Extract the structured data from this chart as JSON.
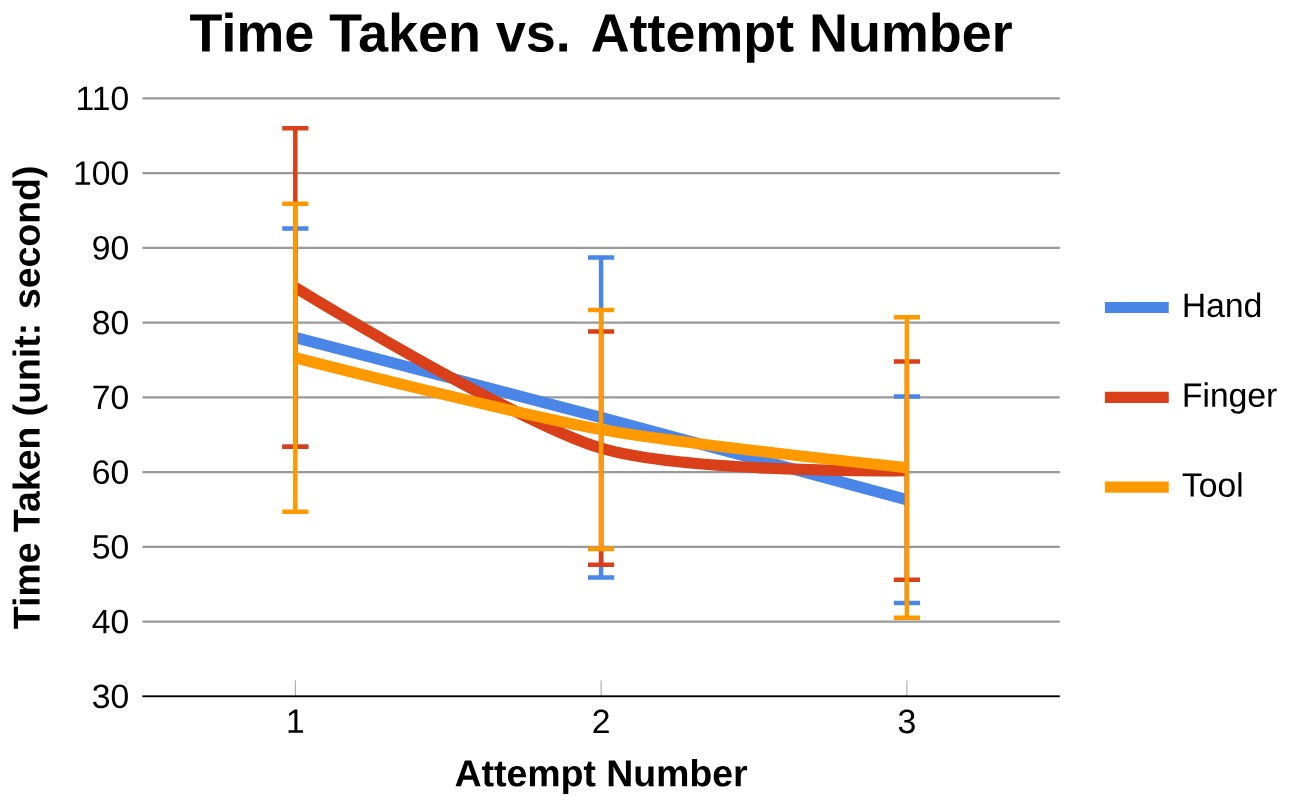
{
  "chart_data": {
    "type": "line",
    "title": "Time Taken vs. Attempt Number",
    "xlabel": "Attempt Number",
    "ylabel": "Time Taken (unit: second)",
    "categories": [
      "1",
      "2",
      "3"
    ],
    "series": [
      {
        "name": "Hand",
        "color": "#4a86e8",
        "values": [
          78,
          67.3,
          56.3
        ],
        "errors": [
          14.6,
          21.4,
          13.8
        ]
      },
      {
        "name": "Finger",
        "color": "#d9401a",
        "values": [
          84.7,
          63.2,
          60.2
        ],
        "errors": [
          21.3,
          15.6,
          14.6
        ]
      },
      {
        "name": "Tool",
        "color": "#ff9900",
        "values": [
          75.3,
          65.7,
          60.6
        ],
        "errors": [
          20.6,
          16,
          20.1
        ]
      }
    ],
    "ylim": [
      30,
      110
    ],
    "yticks": [
      30,
      40,
      50,
      60,
      70,
      80,
      90,
      100,
      110
    ],
    "grid": "y",
    "legend": "right",
    "marker": "none",
    "line_style": "solid"
  }
}
